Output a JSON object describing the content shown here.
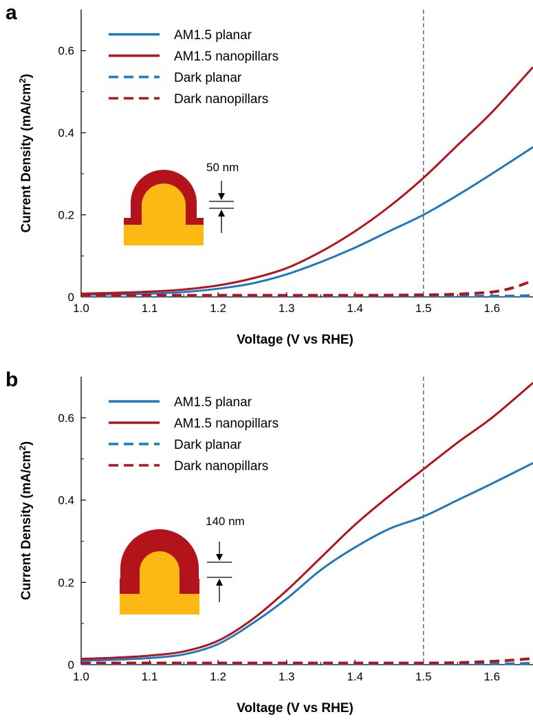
{
  "colors": {
    "blue": "#1f77c0",
    "red": "#b3141b",
    "gold": "#fdb913",
    "dashed_marker": "#666666"
  },
  "chart_data": [
    {
      "type": "line",
      "panel_label": "a",
      "xlabel": "Voltage (V vs RHE)",
      "ylabel_prefix": "Current Density (mA/cm",
      "ylabel_sup": "2",
      "ylabel_suffix": ")",
      "xlim": [
        1.0,
        1.66
      ],
      "ylim": [
        0,
        0.7
      ],
      "x_ticks": [
        "1.0",
        "1.1",
        "1.2",
        "1.3",
        "1.4",
        "1.5",
        "1.6"
      ],
      "y_ticks": [
        "0",
        "0.2",
        "0.4",
        "0.6"
      ],
      "vline_x": 1.5,
      "legend": {
        "placement": "top-left",
        "entries": [
          "AM1.5 planar",
          "AM1.5 nanopillars",
          "Dark planar",
          "Dark nanopillars"
        ]
      },
      "annotation": {
        "text": "50 nm"
      },
      "series": [
        {
          "name": "AM1.5 planar",
          "style": "solid",
          "color": "#1f77c0",
          "x": [
            1.0,
            1.05,
            1.1,
            1.15,
            1.2,
            1.25,
            1.3,
            1.35,
            1.4,
            1.45,
            1.5,
            1.55,
            1.6,
            1.66
          ],
          "y": [
            0.005,
            0.006,
            0.008,
            0.012,
            0.02,
            0.033,
            0.055,
            0.085,
            0.12,
            0.16,
            0.2,
            0.248,
            0.3,
            0.365
          ]
        },
        {
          "name": "AM1.5 nanopillars",
          "style": "solid",
          "color": "#b3141b",
          "x": [
            1.0,
            1.05,
            1.1,
            1.15,
            1.2,
            1.25,
            1.3,
            1.35,
            1.4,
            1.45,
            1.5,
            1.55,
            1.6,
            1.66
          ],
          "y": [
            0.008,
            0.01,
            0.013,
            0.018,
            0.028,
            0.045,
            0.07,
            0.11,
            0.16,
            0.22,
            0.29,
            0.37,
            0.45,
            0.56
          ]
        },
        {
          "name": "Dark planar",
          "style": "dashed",
          "color": "#1f77c0",
          "x": [
            1.0,
            1.2,
            1.4,
            1.6,
            1.66
          ],
          "y": [
            0.002,
            0.002,
            0.002,
            0.002,
            0.003
          ]
        },
        {
          "name": "Dark nanopillars",
          "style": "dashed",
          "color": "#b3141b",
          "x": [
            1.0,
            1.2,
            1.4,
            1.5,
            1.55,
            1.6,
            1.63,
            1.66
          ],
          "y": [
            0.004,
            0.004,
            0.004,
            0.005,
            0.007,
            0.012,
            0.022,
            0.04
          ]
        }
      ]
    },
    {
      "type": "line",
      "panel_label": "b",
      "xlabel": "Voltage (V vs RHE)",
      "ylabel_prefix": "Current Density (mA/cm",
      "ylabel_sup": "2",
      "ylabel_suffix": ")",
      "xlim": [
        1.0,
        1.66
      ],
      "ylim": [
        0,
        0.7
      ],
      "x_ticks": [
        "1.0",
        "1.1",
        "1.2",
        "1.3",
        "1.4",
        "1.5",
        "1.6"
      ],
      "y_ticks": [
        "0",
        "0.2",
        "0.4",
        "0.6"
      ],
      "vline_x": 1.5,
      "legend": {
        "placement": "top-left",
        "entries": [
          "AM1.5 planar",
          "AM1.5 nanopillars",
          "Dark planar",
          "Dark nanopillars"
        ]
      },
      "annotation": {
        "text": "140 nm"
      },
      "series": [
        {
          "name": "AM1.5 planar",
          "style": "solid",
          "color": "#1f77c0",
          "x": [
            1.0,
            1.05,
            1.1,
            1.15,
            1.2,
            1.25,
            1.3,
            1.35,
            1.4,
            1.45,
            1.5,
            1.55,
            1.6,
            1.66
          ],
          "y": [
            0.01,
            0.012,
            0.016,
            0.025,
            0.05,
            0.1,
            0.16,
            0.23,
            0.285,
            0.33,
            0.36,
            0.4,
            0.44,
            0.49
          ]
        },
        {
          "name": "AM1.5 nanopillars",
          "style": "solid",
          "color": "#b3141b",
          "x": [
            1.0,
            1.05,
            1.1,
            1.15,
            1.2,
            1.25,
            1.3,
            1.35,
            1.4,
            1.45,
            1.5,
            1.55,
            1.6,
            1.66
          ],
          "y": [
            0.014,
            0.017,
            0.022,
            0.032,
            0.058,
            0.11,
            0.18,
            0.26,
            0.34,
            0.41,
            0.475,
            0.54,
            0.6,
            0.685
          ]
        },
        {
          "name": "Dark planar",
          "style": "dashed",
          "color": "#1f77c0",
          "x": [
            1.0,
            1.2,
            1.4,
            1.6,
            1.66
          ],
          "y": [
            0.002,
            0.002,
            0.002,
            0.002,
            0.003
          ]
        },
        {
          "name": "Dark nanopillars",
          "style": "dashed",
          "color": "#b3141b",
          "x": [
            1.0,
            1.2,
            1.4,
            1.5,
            1.55,
            1.6,
            1.63,
            1.66
          ],
          "y": [
            0.004,
            0.004,
            0.004,
            0.004,
            0.005,
            0.008,
            0.011,
            0.015
          ]
        }
      ]
    }
  ]
}
